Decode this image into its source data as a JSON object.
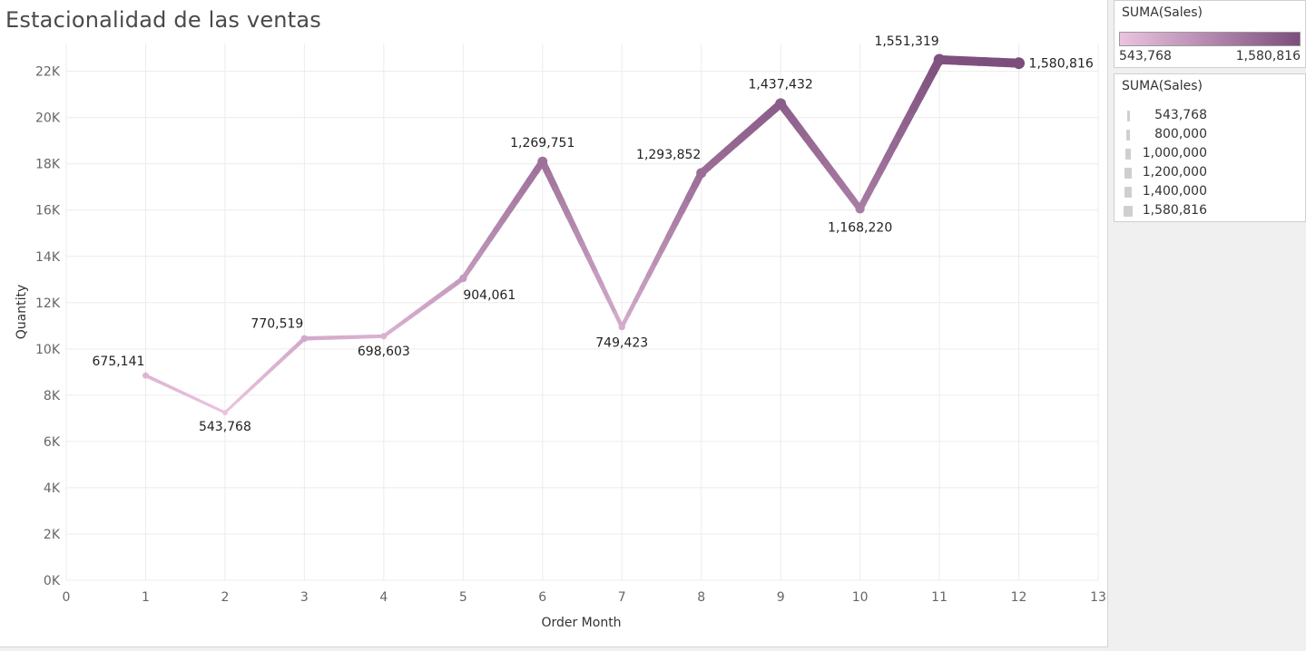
{
  "title": "Estacionalidad de las ventas",
  "chart_data": {
    "type": "line",
    "title": "Estacionalidad de las ventas",
    "xlabel": "Order Month",
    "ylabel": "Quantity",
    "xlim": [
      0,
      13
    ],
    "ylim": [
      0,
      23200
    ],
    "x_ticks": [
      "0",
      "1",
      "2",
      "3",
      "4",
      "5",
      "6",
      "7",
      "8",
      "9",
      "10",
      "11",
      "12",
      "13"
    ],
    "y_ticks": [
      {
        "value": 0,
        "label": "0K"
      },
      {
        "value": 2000,
        "label": "2K"
      },
      {
        "value": 4000,
        "label": "4K"
      },
      {
        "value": 6000,
        "label": "6K"
      },
      {
        "value": 8000,
        "label": "8K"
      },
      {
        "value": 10000,
        "label": "10K"
      },
      {
        "value": 12000,
        "label": "12K"
      },
      {
        "value": 14000,
        "label": "14K"
      },
      {
        "value": 16000,
        "label": "16K"
      },
      {
        "value": 18000,
        "label": "18K"
      },
      {
        "value": 20000,
        "label": "20K"
      },
      {
        "value": 22000,
        "label": "22K"
      }
    ],
    "grid": true,
    "points": [
      {
        "x": 1,
        "y": 8850,
        "sales": 675141,
        "label": "675,141"
      },
      {
        "x": 2,
        "y": 7250,
        "sales": 543768,
        "label": "543,768"
      },
      {
        "x": 3,
        "y": 10450,
        "sales": 770519,
        "label": "770,519"
      },
      {
        "x": 4,
        "y": 10550,
        "sales": 698603,
        "label": "698,603"
      },
      {
        "x": 5,
        "y": 13050,
        "sales": 904061,
        "label": "904,061"
      },
      {
        "x": 6,
        "y": 18100,
        "sales": 1269751,
        "label": "1,269,751"
      },
      {
        "x": 7,
        "y": 10950,
        "sales": 749423,
        "label": "749,423"
      },
      {
        "x": 8,
        "y": 17600,
        "sales": 1293852,
        "label": "1,293,852"
      },
      {
        "x": 9,
        "y": 20600,
        "sales": 1437432,
        "label": "1,437,432"
      },
      {
        "x": 10,
        "y": 16050,
        "sales": 1168220,
        "label": "1,168,220"
      },
      {
        "x": 11,
        "y": 22500,
        "sales": 1551319,
        "label": "1,551,319"
      },
      {
        "x": 12,
        "y": 22350,
        "sales": 1580816,
        "label": "1,580,816"
      }
    ],
    "color_encoding": {
      "field": "SUMA(Sales)",
      "min": 543768,
      "max": 1580816,
      "min_color": "#ebc3e0",
      "max_color": "#7c4e7c"
    },
    "size_encoding": {
      "field": "SUMA(Sales)",
      "min": 543768,
      "max": 1580816
    }
  },
  "legends": {
    "color": {
      "title": "SUMA(Sales)",
      "min_label": "543,768",
      "max_label": "1,580,816",
      "ramp_start": "#ebc3e0",
      "ramp_end": "#7c4e7c"
    },
    "size": {
      "title": "SUMA(Sales)",
      "items": [
        {
          "label": "543,768",
          "value": 543768
        },
        {
          "label": "800,000",
          "value": 800000
        },
        {
          "label": "1,000,000",
          "value": 1000000
        },
        {
          "label": "1,200,000",
          "value": 1200000
        },
        {
          "label": "1,400,000",
          "value": 1400000
        },
        {
          "label": "1,580,816",
          "value": 1580816
        }
      ]
    }
  }
}
